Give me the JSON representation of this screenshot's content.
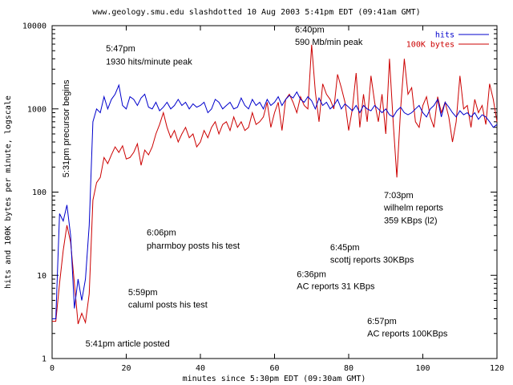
{
  "chart_data": {
    "type": "line",
    "title": "www.geology.smu.edu slashdotted 10 Aug 2003 5:41pm EDT (09:41am GMT)",
    "xlabel": "minutes since 5:30pm EDT (09:30am GMT)",
    "ylabel": "hits and 100K bytes per minute, logscale",
    "xlim": [
      0,
      120
    ],
    "ylim": [
      1,
      10000
    ],
    "yscale": "log",
    "grid": false,
    "legend_position": "top-right",
    "x_ticks": [
      0,
      20,
      40,
      60,
      80,
      100,
      120
    ],
    "y_ticks": [
      1,
      10,
      100,
      1000,
      10000
    ],
    "x_tick_labels": [
      "0",
      "20",
      "40",
      "60",
      "80",
      "100",
      "120"
    ],
    "y_tick_labels": [
      "1",
      "10",
      "100",
      "1000",
      "10000"
    ],
    "series": [
      {
        "name": "hits",
        "color": "#0000cc",
        "x": [
          0,
          1,
          2,
          3,
          4,
          5,
          6,
          7,
          8,
          9,
          10,
          11,
          12,
          13,
          14,
          15,
          16,
          17,
          18,
          19,
          20,
          21,
          22,
          23,
          24,
          25,
          26,
          27,
          28,
          29,
          30,
          31,
          32,
          33,
          34,
          35,
          36,
          37,
          38,
          39,
          40,
          41,
          42,
          43,
          44,
          45,
          46,
          47,
          48,
          49,
          50,
          51,
          52,
          53,
          54,
          55,
          56,
          57,
          58,
          59,
          60,
          61,
          62,
          63,
          64,
          65,
          66,
          67,
          68,
          69,
          70,
          71,
          72,
          73,
          74,
          75,
          76,
          77,
          78,
          79,
          80,
          81,
          82,
          83,
          84,
          85,
          86,
          87,
          88,
          89,
          90,
          91,
          92,
          93,
          94,
          95,
          96,
          97,
          98,
          99,
          100,
          101,
          102,
          103,
          104,
          105,
          106,
          107,
          108,
          109,
          110,
          111,
          112,
          113,
          114,
          115,
          116,
          117,
          118,
          119,
          120
        ],
        "y": [
          3,
          3,
          55,
          45,
          70,
          30,
          4,
          9,
          5,
          9,
          40,
          700,
          1000,
          900,
          1400,
          1000,
          1300,
          1500,
          1930,
          1100,
          1000,
          1400,
          1300,
          1100,
          1350,
          1500,
          1050,
          1000,
          1200,
          950,
          1050,
          1200,
          1000,
          1100,
          1300,
          1100,
          1200,
          1000,
          1150,
          1050,
          1100,
          1200,
          900,
          1000,
          1300,
          1200,
          1000,
          1100,
          1200,
          1000,
          1050,
          1350,
          1100,
          1000,
          1300,
          1100,
          1200,
          1000,
          1300,
          1100,
          1200,
          1400,
          1100,
          1300,
          1450,
          1350,
          1600,
          1300,
          1200,
          1400,
          1250,
          1000,
          1350,
          1100,
          1200,
          1000,
          1100,
          1300,
          1000,
          1150,
          1050,
          950,
          1100,
          900,
          1100,
          1000,
          950,
          1100,
          1000,
          900,
          1000,
          850,
          800,
          950,
          1050,
          900,
          850,
          900,
          1000,
          1100,
          900,
          800,
          1000,
          1100,
          1300,
          800,
          1200,
          1050,
          900,
          800,
          950,
          850,
          900,
          800,
          900,
          750,
          850,
          800,
          700,
          600,
          650
        ]
      },
      {
        "name": "100K bytes",
        "color": "#cc0000",
        "x": [
          0,
          1,
          2,
          3,
          4,
          5,
          6,
          7,
          8,
          9,
          10,
          11,
          12,
          13,
          14,
          15,
          16,
          17,
          18,
          19,
          20,
          21,
          22,
          23,
          24,
          25,
          26,
          27,
          28,
          29,
          30,
          31,
          32,
          33,
          34,
          35,
          36,
          37,
          38,
          39,
          40,
          41,
          42,
          43,
          44,
          45,
          46,
          47,
          48,
          49,
          50,
          51,
          52,
          53,
          54,
          55,
          56,
          57,
          58,
          59,
          60,
          61,
          62,
          63,
          64,
          65,
          66,
          67,
          68,
          69,
          70,
          71,
          72,
          73,
          74,
          75,
          76,
          77,
          78,
          79,
          80,
          81,
          82,
          83,
          84,
          85,
          86,
          87,
          88,
          89,
          90,
          91,
          92,
          93,
          94,
          95,
          96,
          97,
          98,
          99,
          100,
          101,
          102,
          103,
          104,
          105,
          106,
          107,
          108,
          109,
          110,
          111,
          112,
          113,
          114,
          115,
          116,
          117,
          118,
          119,
          120
        ],
        "y": [
          2.8,
          2.8,
          8,
          20,
          40,
          25,
          8,
          2.6,
          3.5,
          2.7,
          6,
          80,
          130,
          150,
          260,
          220,
          280,
          350,
          300,
          360,
          250,
          260,
          300,
          380,
          210,
          320,
          280,
          350,
          500,
          650,
          900,
          600,
          450,
          550,
          400,
          500,
          600,
          450,
          500,
          350,
          400,
          550,
          450,
          600,
          700,
          500,
          650,
          700,
          550,
          800,
          600,
          700,
          550,
          600,
          900,
          650,
          700,
          800,
          1200,
          600,
          900,
          1200,
          550,
          1300,
          1500,
          1200,
          900,
          1400,
          1100,
          1000,
          5900,
          1600,
          700,
          2000,
          1500,
          1300,
          1000,
          2600,
          1800,
          1200,
          550,
          1000,
          2700,
          600,
          1500,
          700,
          2500,
          1200,
          700,
          1500,
          500,
          4000,
          700,
          150,
          1000,
          4000,
          1500,
          1800,
          700,
          600,
          1100,
          1400,
          800,
          600,
          1400,
          900,
          1200,
          800,
          400,
          700,
          2500,
          1000,
          1100,
          600,
          1300,
          900,
          1100,
          650,
          2000,
          1300,
          700
        ]
      }
    ],
    "annotations": [
      {
        "x": 9,
        "y": 1.4,
        "text": "5:41pm  article posted"
      },
      {
        "x": 20.5,
        "y": 5.8,
        "text": "5:59pm"
      },
      {
        "x": 20.5,
        "y": 4.1,
        "text": "caluml posts his test"
      },
      {
        "x": 25.5,
        "y": 30,
        "text": "6:06pm"
      },
      {
        "x": 25.5,
        "y": 21,
        "text": "pharmboy posts his test"
      },
      {
        "x": 14.5,
        "y": 4900,
        "text": "5:47pm"
      },
      {
        "x": 14.5,
        "y": 3400,
        "text": "1930 hits/minute peak"
      },
      {
        "x": 65.5,
        "y": 8300,
        "text": "6:40pm"
      },
      {
        "x": 65.5,
        "y": 5900,
        "text": "590 Mb/min peak"
      },
      {
        "x": 75,
        "y": 20,
        "text": "6:45pm"
      },
      {
        "x": 75,
        "y": 14.2,
        "text": "scottj reports 30KBps"
      },
      {
        "x": 66,
        "y": 9.5,
        "text": "6:36pm"
      },
      {
        "x": 66,
        "y": 6.8,
        "text": "AC reports 31 KBps"
      },
      {
        "x": 85,
        "y": 2.6,
        "text": "6:57pm"
      },
      {
        "x": 85,
        "y": 1.85,
        "text": "AC reports 100KBps"
      },
      {
        "x": 89.5,
        "y": 85,
        "text": "7:03pm"
      },
      {
        "x": 89.5,
        "y": 60,
        "text": "wilhelm reports"
      },
      {
        "x": 89.5,
        "y": 42,
        "text": "359 KBps (l2)"
      },
      {
        "x": 4.5,
        "y": 150,
        "text": "5:31pm  precursor begins",
        "rotate": -90
      }
    ]
  }
}
